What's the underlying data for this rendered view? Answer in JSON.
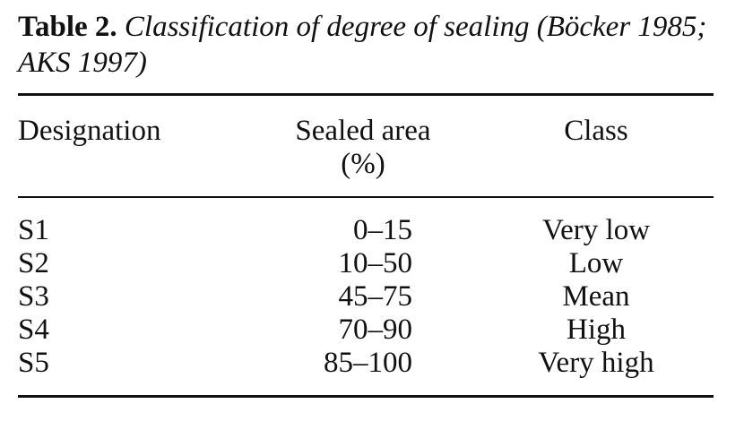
{
  "caption": {
    "label": "Table 2.",
    "title": "Classification of degree of sealing (Böcker 1985; AKS 1997)"
  },
  "table": {
    "headers": {
      "designation": "Designation",
      "sealed_area_line1": "Sealed area",
      "sealed_area_line2": "(%)",
      "class": "Class"
    },
    "rows": [
      {
        "designation": "S1",
        "sealed_area": "0–15",
        "class": "Very low"
      },
      {
        "designation": "S2",
        "sealed_area": "10–50",
        "class": "Low"
      },
      {
        "designation": "S3",
        "sealed_area": "45–75",
        "class": "Mean"
      },
      {
        "designation": "S4",
        "sealed_area": "70–90",
        "class": "High"
      },
      {
        "designation": "S5",
        "sealed_area": "85–100",
        "class": "Very high"
      }
    ]
  }
}
